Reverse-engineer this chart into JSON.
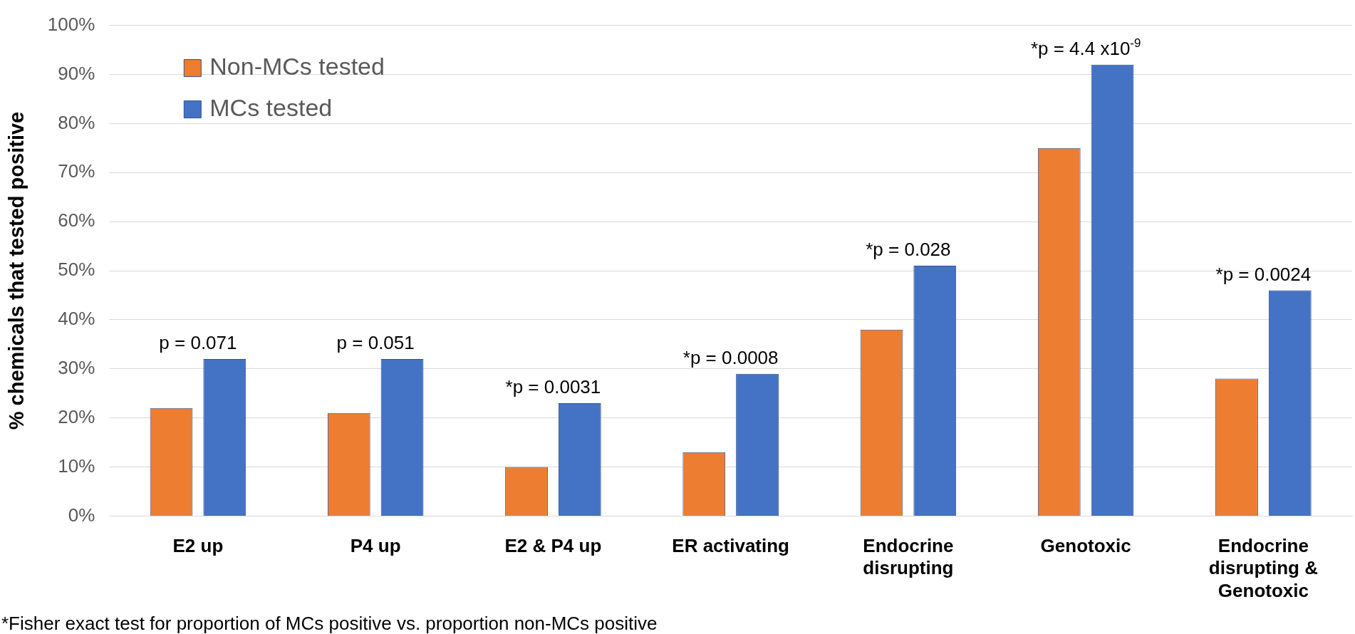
{
  "chart_data": {
    "type": "bar",
    "ylabel": "% chemicals that tested positive",
    "categories": [
      "E2 up",
      "P4 up",
      "E2 & P4 up",
      "ER activating",
      "Endocrine disrupting",
      "Genotoxic",
      "Endocrine disrupting & Genotoxic"
    ],
    "series": [
      {
        "name": "Non-MCs tested",
        "color": "#ed7d31",
        "values": [
          22,
          21,
          10,
          13,
          38,
          75,
          28
        ]
      },
      {
        "name": "MCs tested",
        "color": "#4472c4",
        "values": [
          32,
          32,
          23,
          29,
          51,
          92,
          46
        ]
      }
    ],
    "ylim": [
      0,
      100
    ],
    "yticks": [
      {
        "value": 0,
        "label": "0%"
      },
      {
        "value": 10,
        "label": "10%"
      },
      {
        "value": 20,
        "label": "20%"
      },
      {
        "value": 30,
        "label": "30%"
      },
      {
        "value": 40,
        "label": "40%"
      },
      {
        "value": 50,
        "label": "50%"
      },
      {
        "value": 60,
        "label": "60%"
      },
      {
        "value": 70,
        "label": "70%"
      },
      {
        "value": 80,
        "label": "80%"
      },
      {
        "value": 90,
        "label": "90%"
      },
      {
        "value": 100,
        "label": "100%"
      }
    ],
    "grid": "y",
    "legend": "top left",
    "annotations": [
      "p = 0.071",
      "p = 0.051",
      "*p = 0.0031",
      "*p = 0.0008",
      "*p = 0.028",
      "*p = 4.4 x10$^{-9}$",
      "*p = 0.0024",
      "*Fisher exact test for proportion of MCs positive vs. proportion non-MCs positive"
    ]
  }
}
